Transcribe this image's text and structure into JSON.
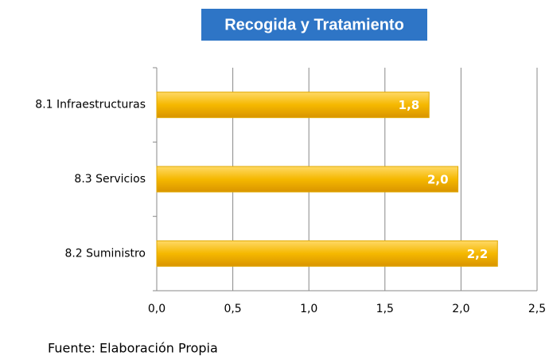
{
  "chart_data": {
    "type": "bar",
    "orientation": "horizontal",
    "title": "Recogida y Tratamiento",
    "categories": [
      "8.1 Infraestructuras",
      "8.3 Servicios",
      "8.2 Suministro"
    ],
    "values": [
      1.79,
      1.98,
      2.24
    ],
    "value_labels": [
      "1,8",
      "2,0",
      "2,2"
    ],
    "color": "#f2b600",
    "xlim": [
      0,
      2.5
    ],
    "xticks": [
      {
        "value": 0,
        "label": "0,0"
      },
      {
        "value": 0.5,
        "label": "0,5"
      },
      {
        "value": 1,
        "label": "1,0"
      },
      {
        "value": 1.5,
        "label": "1,5"
      },
      {
        "value": 2,
        "label": "2,0"
      },
      {
        "value": 2.5,
        "label": "2,5"
      }
    ],
    "grid": true,
    "source": "Fuente: Elaboración Propia"
  }
}
